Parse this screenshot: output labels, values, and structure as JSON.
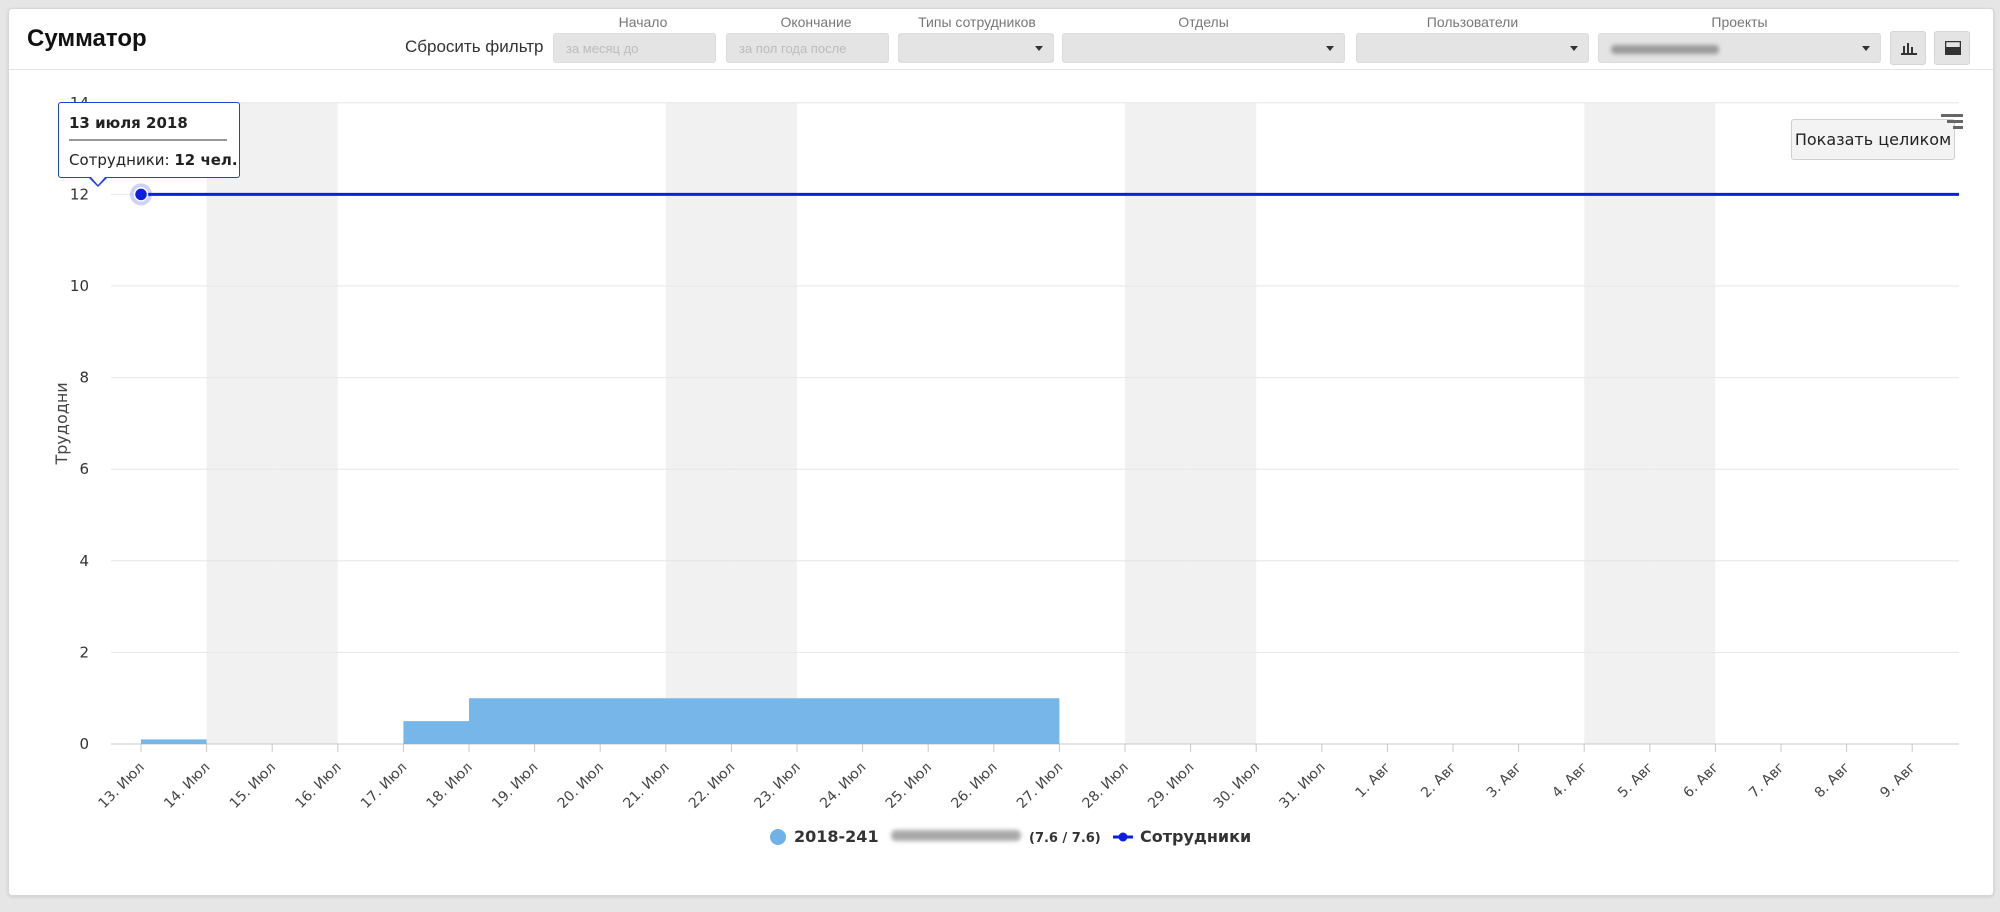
{
  "header": {
    "title": "Сумматор",
    "reset_filter": "Сбросить фильтр"
  },
  "filters": {
    "start": {
      "label": "Начало",
      "placeholder": "за месяц до"
    },
    "end": {
      "label": "Окончание",
      "placeholder": "за пол года после"
    },
    "employee_types": {
      "label": "Типы сотрудников",
      "value": ""
    },
    "departments": {
      "label": "Отделы",
      "value": ""
    },
    "users": {
      "label": "Пользователи",
      "value": ""
    },
    "projects": {
      "label": "Проекты",
      "value": ""
    }
  },
  "toolbar_icons": [
    "bar-chart-icon",
    "window-icon"
  ],
  "zoom_button": "Показать целиком",
  "tooltip": {
    "title": "13 июля 2018",
    "label": "Сотрудники:",
    "value": "12 чел."
  },
  "legend": {
    "bar_series_name": "2018-241",
    "bar_series_suffix": "(7.6 / 7.6)",
    "line_series_name": "Сотрудники"
  },
  "colors": {
    "bar": "#6fb2e8",
    "line": "#0b1fe0",
    "weekend_band": "#f1f1f1"
  },
  "chart_data": {
    "type": "bar",
    "ylabel": "Трудодни",
    "xlabel": "",
    "ylim": [
      0,
      14
    ],
    "yticks": [
      0,
      2,
      4,
      6,
      8,
      10,
      12,
      14
    ],
    "categories": [
      "13. Июл",
      "14. Июл",
      "15. Июл",
      "16. Июл",
      "17. Июл",
      "18. Июл",
      "19. Июл",
      "20. Июл",
      "21. Июл",
      "22. Июл",
      "23. Июл",
      "24. Июл",
      "25. Июл",
      "26. Июл",
      "27. Июл",
      "28. Июл",
      "29. Июл",
      "30. Июл",
      "31. Июл",
      "1. Авг",
      "2. Авг",
      "3. Авг",
      "4. Авг",
      "5. Авг",
      "6. Авг",
      "7. Авг",
      "8. Авг",
      "9. Авг"
    ],
    "weekend_categories": [
      "14. Июл",
      "15. Июл",
      "21. Июл",
      "22. Июл",
      "28. Июл",
      "29. Июл",
      "4. Авг",
      "5. Авг"
    ],
    "series": [
      {
        "name": "2018-241",
        "type": "area-step",
        "values": [
          0.1,
          0,
          0,
          0,
          0.5,
          1,
          1,
          1,
          1,
          1,
          1,
          1,
          1,
          1,
          0,
          0,
          0,
          0,
          0,
          0,
          0,
          0,
          0,
          0,
          0,
          0,
          0,
          0
        ]
      },
      {
        "name": "Сотрудники",
        "type": "line",
        "values": [
          12,
          12,
          12,
          12,
          12,
          12,
          12,
          12,
          12,
          12,
          12,
          12,
          12,
          12,
          12,
          12,
          12,
          12,
          12,
          12,
          12,
          12,
          12,
          12,
          12,
          12,
          12,
          12
        ]
      }
    ],
    "legend_position": "bottom-center",
    "grid": true
  }
}
